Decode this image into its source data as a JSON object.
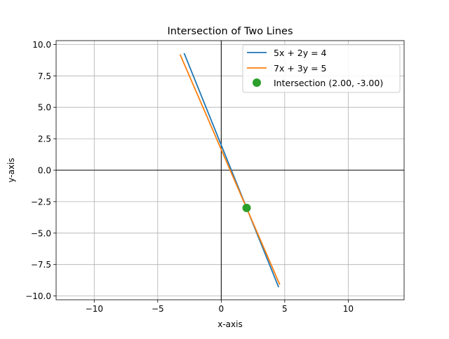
{
  "chart_data": {
    "type": "line",
    "title": "Intersection of Two Lines",
    "xlabel": "x-axis",
    "ylabel": "y-axis",
    "xlim": [
      -13.0,
      14.4
    ],
    "ylim": [
      -10.3,
      10.3
    ],
    "grid": true,
    "legend_position": "top-right",
    "x_ticks": [
      -10,
      -5,
      0,
      5,
      10
    ],
    "x_tick_labels": [
      "−10",
      "−5",
      "0",
      "5",
      "10"
    ],
    "y_ticks": [
      -10.0,
      -7.5,
      -5.0,
      -2.5,
      0.0,
      2.5,
      5.0,
      7.5,
      10.0
    ],
    "y_tick_labels": [
      "−10.0",
      "−7.5",
      "−5.0",
      "−2.5",
      "0.0",
      "2.5",
      "5.0",
      "7.5",
      "10.0"
    ],
    "series": [
      {
        "name": "5x + 2y = 4",
        "color": "#1f77b4",
        "x": [
          -2.92,
          4.52
        ],
        "y": [
          9.3,
          -9.3
        ]
      },
      {
        "name": "7x + 3y = 5",
        "color": "#ff7f0e",
        "x": [
          -3.24,
          4.61
        ],
        "y": [
          9.2,
          -9.1
        ]
      }
    ],
    "intersection": {
      "name": "Intersection (2.00, -3.00)",
      "x": 2.0,
      "y": -3.0,
      "color": "#2ca02c"
    },
    "reference_lines": {
      "x": 0,
      "y": 0,
      "color": "#000000"
    }
  }
}
